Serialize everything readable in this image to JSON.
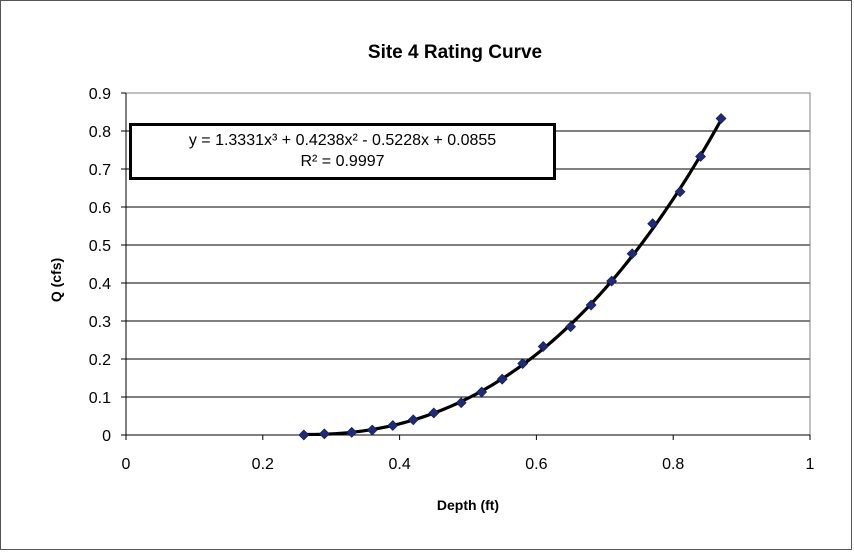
{
  "chart_data": {
    "type": "scatter",
    "title": "Site 4 Rating Curve",
    "xlabel": "Depth (ft)",
    "ylabel": "Q (cfs)",
    "xlim": [
      0,
      1
    ],
    "ylim": [
      0,
      0.9
    ],
    "x_ticks": [
      "0",
      "0.2",
      "0.4",
      "0.6",
      "0.8",
      "1"
    ],
    "y_ticks": [
      "0",
      "0.1",
      "0.2",
      "0.3",
      "0.4",
      "0.5",
      "0.6",
      "0.7",
      "0.8",
      "0.9"
    ],
    "grid": "horizontal",
    "marker": "diamond",
    "marker_color": "#1f2a7a",
    "trendline_color": "#000000",
    "series": [
      {
        "x": [
          0.26,
          0.29,
          0.33,
          0.36,
          0.39,
          0.42,
          0.45,
          0.49,
          0.52,
          0.55,
          0.58,
          0.61,
          0.65,
          0.68,
          0.71,
          0.74,
          0.77,
          0.81,
          0.84,
          0.87
        ],
        "y": [
          0.0,
          0.003,
          0.007,
          0.013,
          0.025,
          0.04,
          0.058,
          0.085,
          0.113,
          0.147,
          0.188,
          0.233,
          0.285,
          0.342,
          0.405,
          0.477,
          0.556,
          0.64,
          0.733,
          0.833
        ]
      }
    ],
    "trendline": {
      "type": "polynomial",
      "order": 3,
      "coefficients": [
        1.3331,
        0.4238,
        -0.5228,
        0.0855
      ],
      "x_range": [
        0.26,
        0.87
      ],
      "equation_line1": "y = 1.3331x³ + 0.4238x² - 0.5228x + 0.0855",
      "equation_line2": "R² = 0.9997"
    }
  }
}
